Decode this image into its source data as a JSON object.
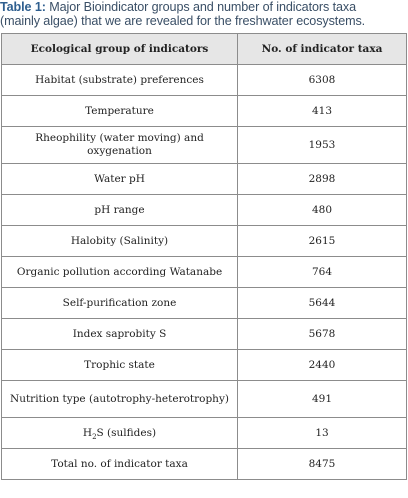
{
  "caption": {
    "label": "Table 1:",
    "line1": "Major Bioindicator groups and number of indicators taxa",
    "line2": "(mainly algae) that we are revealed for the freshwater ecosystems."
  },
  "table": {
    "headers": [
      "Ecological group of indicators",
      "No. of indicator taxa"
    ],
    "rows": [
      {
        "group": "Habitat (substrate) preferences",
        "count": "6308"
      },
      {
        "group": "Temperature",
        "count": "413"
      },
      {
        "group": "Rheophility (water moving) and oxygenation",
        "count": "1953"
      },
      {
        "group": "Water pH",
        "count": "2898"
      },
      {
        "group": "pH range",
        "count": "480"
      },
      {
        "group": "Halobity (Salinity)",
        "count": "2615"
      },
      {
        "group": "Organic pollution according Watanabe",
        "count": "764"
      },
      {
        "group": "Self-purification zone",
        "count": "5644"
      },
      {
        "group": "Index saprobity S",
        "count": "5678"
      },
      {
        "group": "Trophic state",
        "count": "2440"
      },
      {
        "group": "Nutrition type (autotrophy-heterotrophy)",
        "count": "491"
      },
      {
        "group_h": "H",
        "group_sub": "2",
        "group_rest": "S (sulfides)",
        "count": "13"
      },
      {
        "group": "Total no. of indicator taxa",
        "count": "8475"
      }
    ]
  }
}
